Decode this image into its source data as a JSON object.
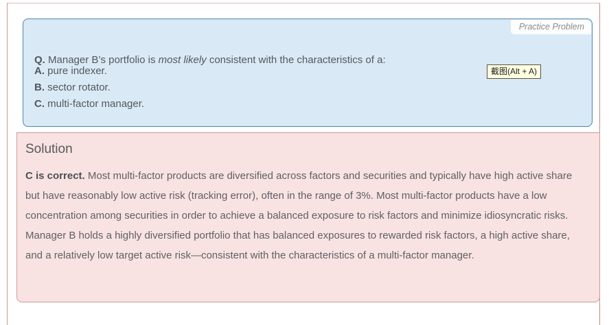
{
  "page": {
    "frame_border_color": "#c99b94"
  },
  "question_box": {
    "corner_label": "Practice Problem",
    "q_prefix": "Q.",
    "q_text_before": " Manager B’s portfolio is ",
    "q_text_italic": "most likely",
    "q_text_after": " consistent with the characteristics of a:",
    "options": [
      {
        "letter": "A.",
        "text": " pure indexer."
      },
      {
        "letter": "B.",
        "text": " sector rotator."
      },
      {
        "letter": "C.",
        "text": " multi-factor manager."
      }
    ],
    "bg_color": "#d9e9f6",
    "border_color": "#4d86b0"
  },
  "screenshot_tooltip": {
    "label": "截图(Alt + A)",
    "bg_color": "#ffffe1"
  },
  "solution": {
    "heading": "Solution",
    "lead_bold": "C is correct.",
    "body": " Most multi-factor products are diversified across factors and securities and typically have high active share but have reasonably low active risk (tracking error), often in the range of 3%. Most multi-factor products have a low concentration among securities in order to achieve a balanced exposure to risk factors and minimize idiosyncratic risks. Manager B holds a highly diversified portfolio that has balanced exposures to rewarded risk factors, a high active share, and a relatively low target active risk—consistent with the characteristics of a multi-factor manager.",
    "bg_color": "#f9e2e2",
    "border_color": "#cf9a9a"
  }
}
